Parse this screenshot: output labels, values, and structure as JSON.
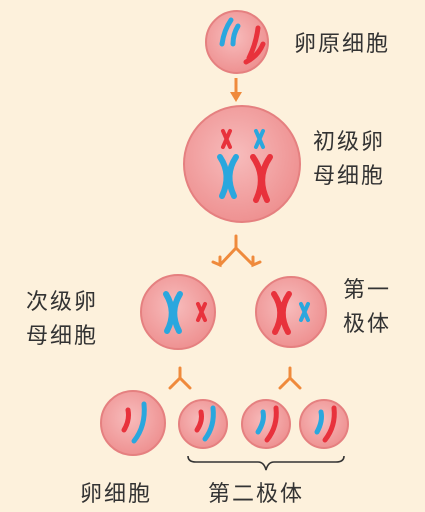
{
  "labels": {
    "oogonium": "卵原细胞",
    "primary_oocyte": [
      "初级卵",
      "母细胞"
    ],
    "secondary_oocyte": [
      "次级卵",
      "母细胞"
    ],
    "first_polar_body": [
      "第一",
      "极体"
    ],
    "ovum": "卵细胞",
    "second_polar_body": "第二极体"
  },
  "colors": {
    "background": "#fdf1dc",
    "cell_fill": "#f2a0a0",
    "cell_stroke": "#e07d7d",
    "chromosome_blue": "#2aa7de",
    "chromosome_red": "#e8323c",
    "arrow": "#ef8a3c",
    "bracket": "#333333"
  }
}
